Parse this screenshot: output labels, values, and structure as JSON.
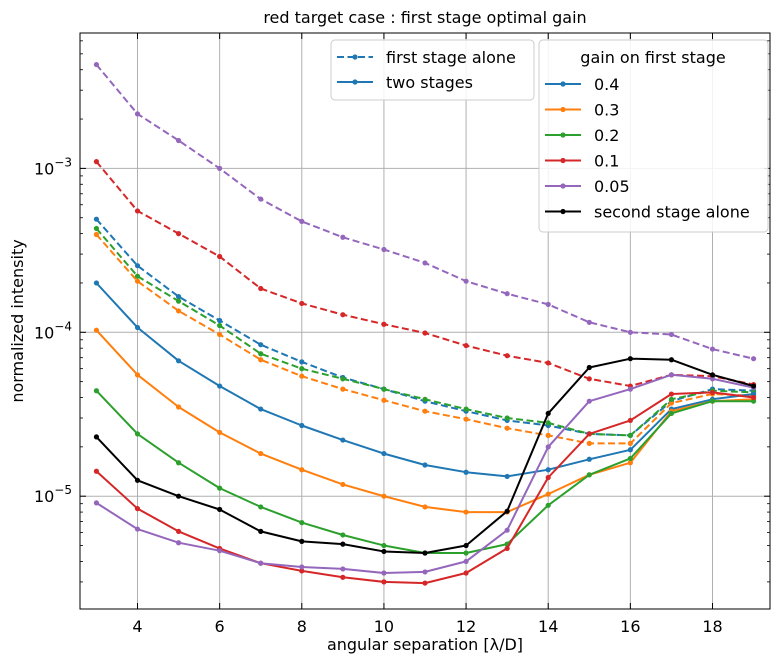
{
  "chart_data": {
    "type": "line",
    "title": "red target case : first stage optimal gain",
    "xlabel": "angular separation [λ/D]",
    "ylabel": "normalized intensity",
    "xlim": [
      2.6,
      19.4
    ],
    "ylim": [
      2.05e-06,
      0.0067
    ],
    "yscale": "log",
    "grid": true,
    "x": [
      3,
      4,
      5,
      6,
      7,
      8,
      9,
      10,
      11,
      12,
      13,
      14,
      15,
      16,
      17,
      18,
      19
    ],
    "xticks": [
      4,
      6,
      8,
      10,
      12,
      14,
      16,
      18
    ],
    "xtick_labels": [
      "4",
      "6",
      "8",
      "10",
      "12",
      "14",
      "16",
      "18"
    ],
    "yticks": [
      1e-05,
      0.0001,
      0.001
    ],
    "ytick_labels": [
      {
        "base": "10",
        "exp": "−5"
      },
      {
        "base": "10",
        "exp": "−4"
      },
      {
        "base": "10",
        "exp": "−3"
      }
    ],
    "series": [
      {
        "name": "0.4",
        "color": "#1f77b4",
        "style": "dashed",
        "values": [
          0.00049,
          0.000255,
          0.000165,
          0.000118,
          8.4e-05,
          6.6e-05,
          5.3e-05,
          4.5e-05,
          3.8e-05,
          3.3e-05,
          2.9e-05,
          2.7e-05,
          2.4e-05,
          2.35e-05,
          3.8e-05,
          4.5e-05,
          4.4e-05
        ]
      },
      {
        "name": "0.3",
        "color": "#ff7f0e",
        "style": "dashed",
        "values": [
          0.000395,
          0.000205,
          0.000135,
          9.7e-05,
          6.8e-05,
          5.4e-05,
          4.5e-05,
          3.85e-05,
          3.3e-05,
          2.95e-05,
          2.6e-05,
          2.35e-05,
          2.1e-05,
          2.1e-05,
          3.7e-05,
          4.2e-05,
          4.1e-05
        ]
      },
      {
        "name": "0.2",
        "color": "#2ca02c",
        "style": "dashed",
        "values": [
          0.00043,
          0.00022,
          0.000155,
          0.00011,
          7.4e-05,
          6e-05,
          5.2e-05,
          4.5e-05,
          3.9e-05,
          3.4e-05,
          3e-05,
          2.8e-05,
          2.4e-05,
          2.35e-05,
          3.9e-05,
          4.4e-05,
          4.3e-05
        ]
      },
      {
        "name": "0.1",
        "color": "#d62728",
        "style": "dashed",
        "values": [
          0.0011,
          0.00055,
          0.0004,
          0.00029,
          0.000185,
          0.00015,
          0.000128,
          0.000112,
          9.9e-05,
          8.3e-05,
          7.2e-05,
          6.5e-05,
          5.2e-05,
          4.7e-05,
          5.5e-05,
          5.4e-05,
          4.8e-05
        ]
      },
      {
        "name": "0.05",
        "color": "#9467bd",
        "style": "dashed",
        "values": [
          0.0043,
          0.00215,
          0.00148,
          0.001,
          0.00065,
          0.000475,
          0.00038,
          0.00032,
          0.000265,
          0.000205,
          0.000172,
          0.000148,
          0.000115,
          0.0001,
          9.7e-05,
          7.9e-05,
          6.9e-05
        ]
      },
      {
        "name": "0.4",
        "color": "#1f77b4",
        "style": "solid",
        "values": [
          0.0002,
          0.000107,
          6.7e-05,
          4.7e-05,
          3.4e-05,
          2.7e-05,
          2.2e-05,
          1.82e-05,
          1.55e-05,
          1.4e-05,
          1.32e-05,
          1.45e-05,
          1.68e-05,
          1.92e-05,
          3.4e-05,
          3.9e-05,
          4.2e-05
        ]
      },
      {
        "name": "0.3",
        "color": "#ff7f0e",
        "style": "solid",
        "values": [
          0.000103,
          5.5e-05,
          3.5e-05,
          2.45e-05,
          1.82e-05,
          1.45e-05,
          1.18e-05,
          1e-05,
          8.6e-06,
          8e-06,
          8e-06,
          1.03e-05,
          1.35e-05,
          1.6e-05,
          3.3e-05,
          3.8e-05,
          3.9e-05
        ]
      },
      {
        "name": "0.2",
        "color": "#2ca02c",
        "style": "solid",
        "values": [
          4.4e-05,
          2.4e-05,
          1.6e-05,
          1.12e-05,
          8.6e-06,
          6.9e-06,
          5.8e-06,
          5e-06,
          4.5e-06,
          4.5e-06,
          5.1e-06,
          8.8e-06,
          1.35e-05,
          1.7e-05,
          3.2e-05,
          3.8e-05,
          3.8e-05
        ]
      },
      {
        "name": "0.1",
        "color": "#d62728",
        "style": "solid",
        "values": [
          1.42e-05,
          8.4e-06,
          6.1e-06,
          4.8e-06,
          3.9e-06,
          3.5e-06,
          3.2e-06,
          3e-06,
          2.95e-06,
          3.4e-06,
          4.8e-06,
          1.3e-05,
          2.4e-05,
          2.9e-05,
          4.2e-05,
          4.3e-05,
          4e-05
        ]
      },
      {
        "name": "0.05",
        "color": "#9467bd",
        "style": "solid",
        "values": [
          9.1e-06,
          6.3e-06,
          5.2e-06,
          4.65e-06,
          3.9e-06,
          3.7e-06,
          3.6e-06,
          3.4e-06,
          3.45e-06,
          4e-06,
          6.2e-06,
          2e-05,
          3.8e-05,
          4.5e-05,
          5.5e-05,
          5.2e-05,
          4.6e-05
        ]
      },
      {
        "name": "second stage alone",
        "color": "#000000",
        "style": "solid",
        "values": [
          2.3e-05,
          1.25e-05,
          1e-05,
          8.3e-06,
          6.1e-06,
          5.3e-06,
          5.1e-06,
          4.6e-06,
          4.5e-06,
          5e-06,
          8.1e-06,
          3.2e-05,
          6.1e-05,
          6.9e-05,
          6.8e-05,
          5.5e-05,
          4.7e-05
        ]
      }
    ],
    "legend_style": {
      "position": "top-right",
      "entries": [
        {
          "label": "first stage alone",
          "color": "#1f77b4",
          "style": "dashed"
        },
        {
          "label": "two stages",
          "color": "#1f77b4",
          "style": "solid"
        }
      ]
    },
    "legend_gain": {
      "position": "top-right",
      "title": "gain on first stage",
      "entries": [
        {
          "label": "0.4",
          "color": "#1f77b4"
        },
        {
          "label": "0.3",
          "color": "#ff7f0e"
        },
        {
          "label": "0.2",
          "color": "#2ca02c"
        },
        {
          "label": "0.1",
          "color": "#d62728"
        },
        {
          "label": "0.05",
          "color": "#9467bd"
        },
        {
          "label": "second stage alone",
          "color": "#000000"
        }
      ]
    }
  }
}
